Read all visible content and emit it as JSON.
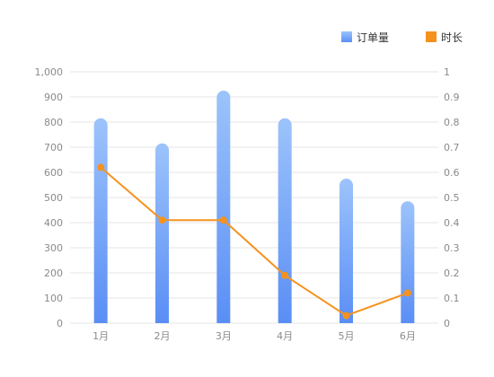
{
  "chart_data": {
    "type": "bar",
    "categories": [
      "1月",
      "2月",
      "3月",
      "4月",
      "5月",
      "6月"
    ],
    "series": [
      {
        "name": "订单量",
        "type": "bar",
        "axis": "left",
        "values": [
          815,
          715,
          925,
          815,
          575,
          485
        ]
      },
      {
        "name": "时长",
        "type": "line",
        "axis": "right",
        "values": [
          0.62,
          0.41,
          0.41,
          0.19,
          0.03,
          0.12
        ]
      }
    ],
    "y_left": {
      "range": [
        0,
        1000
      ],
      "ticks": [
        "0",
        "100",
        "200",
        "300",
        "400",
        "500",
        "600",
        "700",
        "800",
        "900",
        "1,000"
      ]
    },
    "y_right": {
      "range": [
        0,
        1
      ],
      "ticks": [
        "0",
        "0.1",
        "0.2",
        "0.3",
        "0.4",
        "0.5",
        "0.6",
        "0.7",
        "0.8",
        "0.9",
        "1"
      ]
    },
    "grid": true,
    "legend_position": "top-right",
    "colors": {
      "bar_top": "#9cc3fb",
      "bar_bottom": "#5a8ef5",
      "line": "#f5921e",
      "grid": "#e6e6e6",
      "axis_text": "#8a8a8a"
    }
  }
}
